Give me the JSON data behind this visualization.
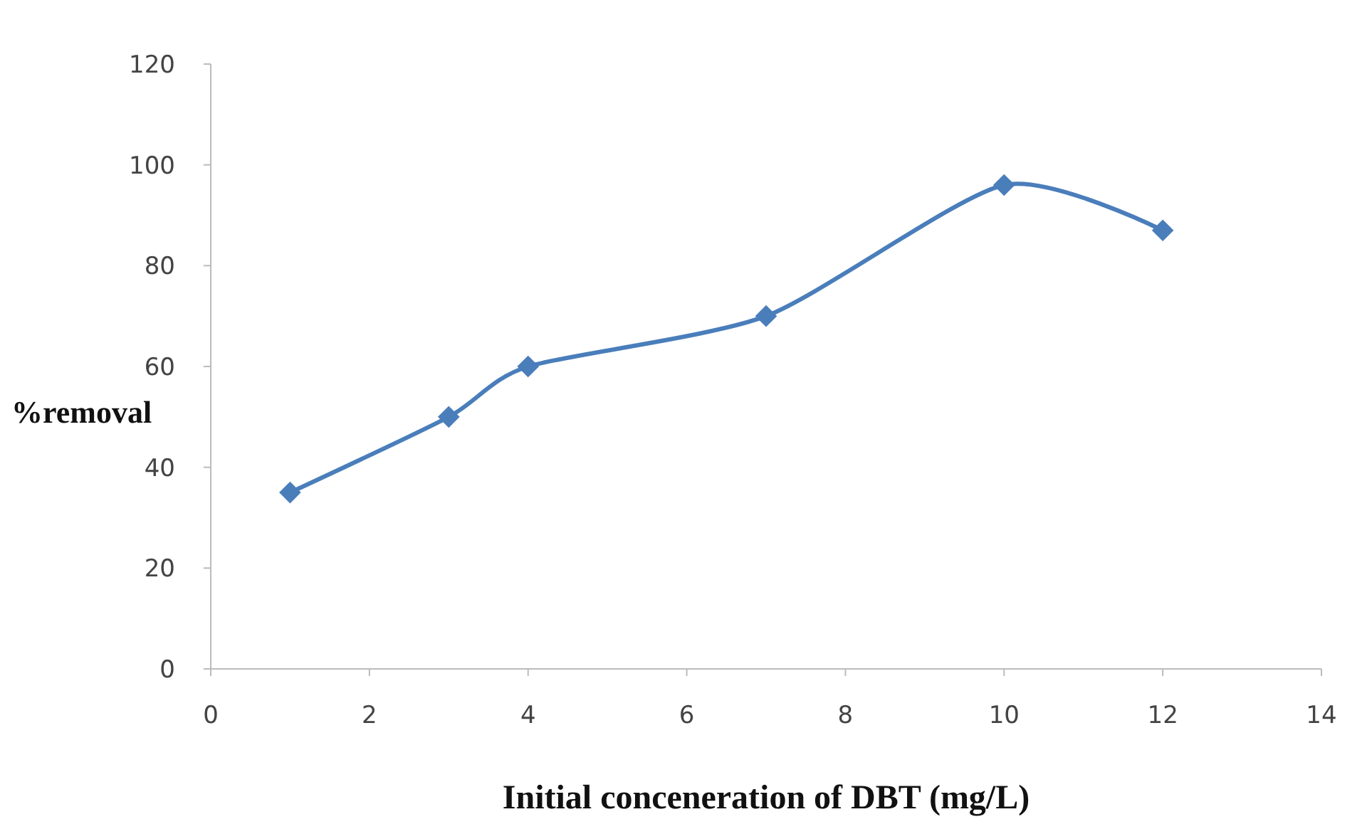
{
  "chart_data": {
    "type": "line",
    "xlabel": "Initial conceneration of DBT (mg/L)",
    "ylabel": "%removal",
    "x": [
      1,
      3,
      4,
      7,
      10,
      12
    ],
    "series": [
      {
        "color": "#4a7ebb",
        "values": [
          35,
          50,
          60,
          70,
          96,
          87
        ]
      }
    ],
    "xlim": [
      0,
      14
    ],
    "xticks": [
      0,
      2,
      4,
      6,
      8,
      10,
      12,
      14
    ],
    "ylim": [
      0,
      120
    ],
    "yticks": [
      0,
      20,
      40,
      60,
      80,
      100,
      120
    ],
    "grid": false,
    "marker": "diamond",
    "line_style": "solid"
  }
}
